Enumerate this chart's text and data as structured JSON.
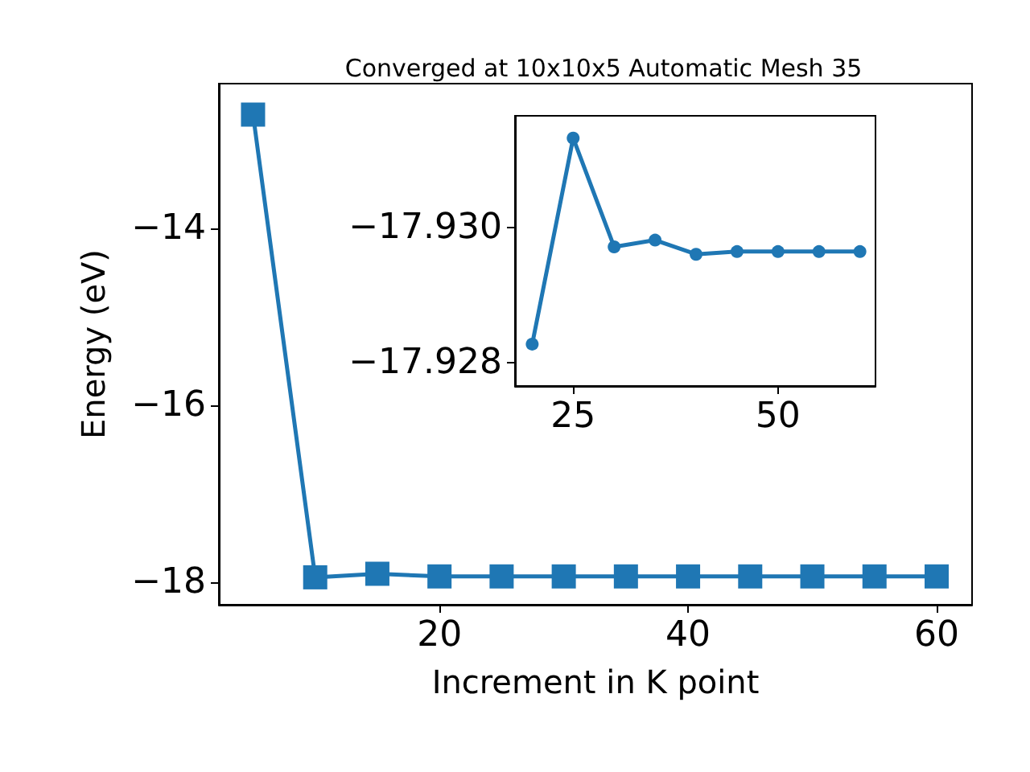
{
  "chart_data": [
    {
      "type": "line",
      "title": "Converged at 10x10x5 Automatic Mesh 35",
      "xlabel": "Increment in K point",
      "ylabel": "Energy (eV)",
      "x": [
        5,
        10,
        15,
        20,
        25,
        30,
        35,
        40,
        45,
        50,
        55,
        60
      ],
      "series": [
        {
          "color": "#1f77b4",
          "values": [
            -12.71,
            -17.94,
            -17.9,
            -17.93,
            -17.93,
            -17.93,
            -17.93,
            -17.93,
            -17.93,
            -17.93,
            -17.93,
            -17.93
          ]
        }
      ],
      "xlim": [
        2.25,
        62.85
      ],
      "ylim": [
        -18.25,
        -12.36
      ],
      "xticks": [
        20,
        40,
        60
      ],
      "yticks": [
        {
          "value": -14,
          "label": "−14"
        },
        {
          "value": -16,
          "label": "−16"
        },
        {
          "value": -18,
          "label": "−18"
        }
      ],
      "marker": "square"
    },
    {
      "type": "line",
      "x": [
        20,
        25,
        30,
        35,
        40,
        45,
        50,
        55,
        60
      ],
      "series": [
        {
          "color": "#1f77b4",
          "values": [
            -17.92828,
            -17.93133,
            -17.92972,
            -17.92982,
            -17.92961,
            -17.92965,
            -17.92965,
            -17.92965,
            -17.92965
          ]
        }
      ],
      "xlim": [
        17.9,
        61.9
      ],
      "ylim": [
        -17.92766,
        -17.93166
      ],
      "xticks": [
        25,
        50
      ],
      "yticks": [
        {
          "value": -17.93,
          "label": "−17.930"
        },
        {
          "value": -17.928,
          "label": "−17.928"
        }
      ],
      "marker": "circle"
    }
  ]
}
